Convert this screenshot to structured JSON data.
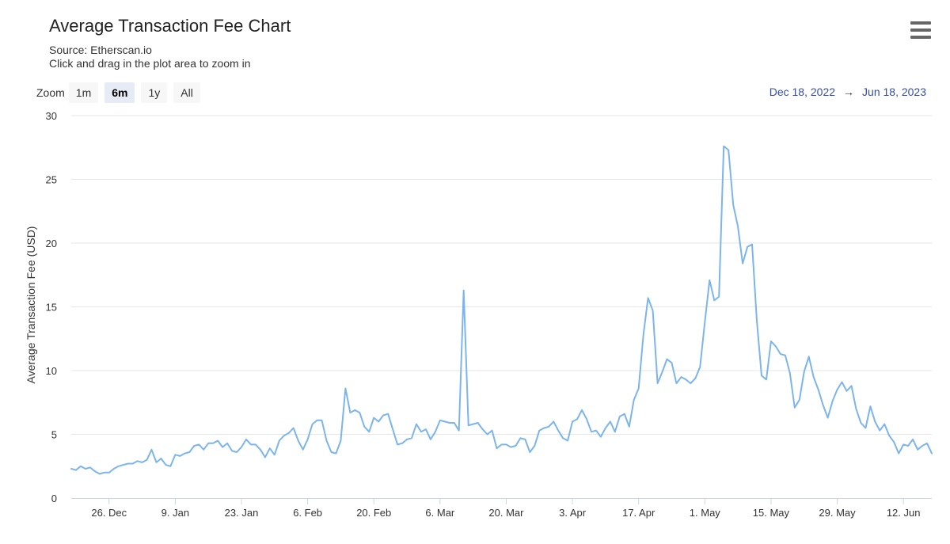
{
  "header": {
    "title": "Average Transaction Fee Chart",
    "source": "Source: Etherscan.io",
    "hint": "Click and drag in the plot area to zoom in"
  },
  "zoom": {
    "label": "Zoom",
    "buttons": [
      "1m",
      "6m",
      "1y",
      "All"
    ],
    "selected": "6m"
  },
  "range": {
    "from": "Dec 18, 2022",
    "arrow": "→",
    "to": "Jun 18, 2023"
  },
  "menu": {
    "icon": "hamburger-menu-icon"
  },
  "colors": {
    "line": "#7cb5ec",
    "grid": "#e6e6e6",
    "axis_text": "#333333",
    "range_text": "#334eaa"
  },
  "chart_data": {
    "type": "line",
    "title": "Average Transaction Fee Chart",
    "ylabel": "Average Transaction Fee (USD)",
    "xlabel": "",
    "ylim": [
      0,
      30
    ],
    "y_ticks": [
      0,
      5,
      10,
      15,
      20,
      25,
      30
    ],
    "x_range": [
      "2022-12-18",
      "2023-06-18"
    ],
    "x_ticks": [
      {
        "date": "2022-12-26",
        "label": "26. Dec"
      },
      {
        "date": "2023-01-09",
        "label": "9. Jan"
      },
      {
        "date": "2023-01-23",
        "label": "23. Jan"
      },
      {
        "date": "2023-02-06",
        "label": "6. Feb"
      },
      {
        "date": "2023-02-20",
        "label": "20. Feb"
      },
      {
        "date": "2023-03-06",
        "label": "6. Mar"
      },
      {
        "date": "2023-03-20",
        "label": "20. Mar"
      },
      {
        "date": "2023-04-03",
        "label": "3. Apr"
      },
      {
        "date": "2023-04-17",
        "label": "17. Apr"
      },
      {
        "date": "2023-05-01",
        "label": "1. May"
      },
      {
        "date": "2023-05-15",
        "label": "15. May"
      },
      {
        "date": "2023-05-29",
        "label": "29. May"
      },
      {
        "date": "2023-06-12",
        "label": "12. Jun"
      }
    ],
    "grid": true,
    "legend": "none",
    "series": [
      {
        "points": [
          [
            "2022-12-18",
            2.3
          ],
          [
            "2022-12-19",
            2.2
          ],
          [
            "2022-12-20",
            2.5
          ],
          [
            "2022-12-21",
            2.3
          ],
          [
            "2022-12-22",
            2.4
          ],
          [
            "2022-12-23",
            2.1
          ],
          [
            "2022-12-24",
            1.9
          ],
          [
            "2022-12-25",
            2.0
          ],
          [
            "2022-12-26",
            2.0
          ],
          [
            "2022-12-27",
            2.3
          ],
          [
            "2022-12-28",
            2.5
          ],
          [
            "2022-12-29",
            2.6
          ],
          [
            "2022-12-30",
            2.7
          ],
          [
            "2022-12-31",
            2.7
          ],
          [
            "2023-01-01",
            2.9
          ],
          [
            "2023-01-02",
            2.8
          ],
          [
            "2023-01-03",
            3.0
          ],
          [
            "2023-01-04",
            3.8
          ],
          [
            "2023-01-05",
            2.8
          ],
          [
            "2023-01-06",
            3.1
          ],
          [
            "2023-01-07",
            2.6
          ],
          [
            "2023-01-08",
            2.5
          ],
          [
            "2023-01-09",
            3.4
          ],
          [
            "2023-01-10",
            3.3
          ],
          [
            "2023-01-11",
            3.5
          ],
          [
            "2023-01-12",
            3.6
          ],
          [
            "2023-01-13",
            4.1
          ],
          [
            "2023-01-14",
            4.2
          ],
          [
            "2023-01-15",
            3.8
          ],
          [
            "2023-01-16",
            4.3
          ],
          [
            "2023-01-17",
            4.3
          ],
          [
            "2023-01-18",
            4.5
          ],
          [
            "2023-01-19",
            4.0
          ],
          [
            "2023-01-20",
            4.3
          ],
          [
            "2023-01-21",
            3.7
          ],
          [
            "2023-01-22",
            3.6
          ],
          [
            "2023-01-23",
            4.0
          ],
          [
            "2023-01-24",
            4.6
          ],
          [
            "2023-01-25",
            4.2
          ],
          [
            "2023-01-26",
            4.2
          ],
          [
            "2023-01-27",
            3.8
          ],
          [
            "2023-01-28",
            3.2
          ],
          [
            "2023-01-29",
            3.9
          ],
          [
            "2023-01-30",
            3.4
          ],
          [
            "2023-01-31",
            4.5
          ],
          [
            "2023-02-01",
            4.9
          ],
          [
            "2023-02-02",
            5.1
          ],
          [
            "2023-02-03",
            5.5
          ],
          [
            "2023-02-04",
            4.5
          ],
          [
            "2023-02-05",
            3.8
          ],
          [
            "2023-02-06",
            4.6
          ],
          [
            "2023-02-07",
            5.8
          ],
          [
            "2023-02-08",
            6.1
          ],
          [
            "2023-02-09",
            6.1
          ],
          [
            "2023-02-10",
            4.5
          ],
          [
            "2023-02-11",
            3.6
          ],
          [
            "2023-02-12",
            3.5
          ],
          [
            "2023-02-13",
            4.5
          ],
          [
            "2023-02-14",
            8.6
          ],
          [
            "2023-02-15",
            6.7
          ],
          [
            "2023-02-16",
            6.9
          ],
          [
            "2023-02-17",
            6.7
          ],
          [
            "2023-02-18",
            5.6
          ],
          [
            "2023-02-19",
            5.2
          ],
          [
            "2023-02-20",
            6.3
          ],
          [
            "2023-02-21",
            6.0
          ],
          [
            "2023-02-22",
            6.5
          ],
          [
            "2023-02-23",
            6.6
          ],
          [
            "2023-02-24",
            5.4
          ],
          [
            "2023-02-25",
            4.2
          ],
          [
            "2023-02-26",
            4.3
          ],
          [
            "2023-02-27",
            4.6
          ],
          [
            "2023-02-28",
            4.7
          ],
          [
            "2023-03-01",
            5.8
          ],
          [
            "2023-03-02",
            5.2
          ],
          [
            "2023-03-03",
            5.4
          ],
          [
            "2023-03-04",
            4.6
          ],
          [
            "2023-03-05",
            5.2
          ],
          [
            "2023-03-06",
            6.1
          ],
          [
            "2023-03-07",
            6.0
          ],
          [
            "2023-03-08",
            5.9
          ],
          [
            "2023-03-09",
            5.9
          ],
          [
            "2023-03-10",
            5.3
          ],
          [
            "2023-03-11",
            16.3
          ],
          [
            "2023-03-12",
            5.7
          ],
          [
            "2023-03-13",
            5.8
          ],
          [
            "2023-03-14",
            5.9
          ],
          [
            "2023-03-15",
            5.4
          ],
          [
            "2023-03-16",
            5.0
          ],
          [
            "2023-03-17",
            5.3
          ],
          [
            "2023-03-18",
            3.9
          ],
          [
            "2023-03-19",
            4.2
          ],
          [
            "2023-03-20",
            4.2
          ],
          [
            "2023-03-21",
            4.0
          ],
          [
            "2023-03-22",
            4.1
          ],
          [
            "2023-03-23",
            4.7
          ],
          [
            "2023-03-24",
            4.6
          ],
          [
            "2023-03-25",
            3.6
          ],
          [
            "2023-03-26",
            4.1
          ],
          [
            "2023-03-27",
            5.3
          ],
          [
            "2023-03-28",
            5.5
          ],
          [
            "2023-03-29",
            5.6
          ],
          [
            "2023-03-30",
            6.0
          ],
          [
            "2023-03-31",
            5.3
          ],
          [
            "2023-04-01",
            4.7
          ],
          [
            "2023-04-02",
            4.5
          ],
          [
            "2023-04-03",
            6.0
          ],
          [
            "2023-04-04",
            6.2
          ],
          [
            "2023-04-05",
            6.9
          ],
          [
            "2023-04-06",
            6.2
          ],
          [
            "2023-04-07",
            5.2
          ],
          [
            "2023-04-08",
            5.3
          ],
          [
            "2023-04-09",
            4.8
          ],
          [
            "2023-04-10",
            5.5
          ],
          [
            "2023-04-11",
            6.0
          ],
          [
            "2023-04-12",
            5.2
          ],
          [
            "2023-04-13",
            6.4
          ],
          [
            "2023-04-14",
            6.6
          ],
          [
            "2023-04-15",
            5.6
          ],
          [
            "2023-04-16",
            7.7
          ],
          [
            "2023-04-17",
            8.6
          ],
          [
            "2023-04-18",
            12.8
          ],
          [
            "2023-04-19",
            15.7
          ],
          [
            "2023-04-20",
            14.7
          ],
          [
            "2023-04-21",
            9.0
          ],
          [
            "2023-04-22",
            9.9
          ],
          [
            "2023-04-23",
            10.9
          ],
          [
            "2023-04-24",
            10.6
          ],
          [
            "2023-04-25",
            9.0
          ],
          [
            "2023-04-26",
            9.5
          ],
          [
            "2023-04-27",
            9.3
          ],
          [
            "2023-04-28",
            9.0
          ],
          [
            "2023-04-29",
            9.4
          ],
          [
            "2023-04-30",
            10.3
          ],
          [
            "2023-05-01",
            13.8
          ],
          [
            "2023-05-02",
            17.1
          ],
          [
            "2023-05-03",
            15.5
          ],
          [
            "2023-05-04",
            15.8
          ],
          [
            "2023-05-05",
            27.6
          ],
          [
            "2023-05-06",
            27.3
          ],
          [
            "2023-05-07",
            23.0
          ],
          [
            "2023-05-08",
            21.3
          ],
          [
            "2023-05-09",
            18.4
          ],
          [
            "2023-05-10",
            19.7
          ],
          [
            "2023-05-11",
            19.9
          ],
          [
            "2023-05-12",
            13.9
          ],
          [
            "2023-05-13",
            9.6
          ],
          [
            "2023-05-14",
            9.3
          ],
          [
            "2023-05-15",
            12.3
          ],
          [
            "2023-05-16",
            11.9
          ],
          [
            "2023-05-17",
            11.3
          ],
          [
            "2023-05-18",
            11.2
          ],
          [
            "2023-05-19",
            9.8
          ],
          [
            "2023-05-20",
            7.1
          ],
          [
            "2023-05-21",
            7.7
          ],
          [
            "2023-05-22",
            9.9
          ],
          [
            "2023-05-23",
            11.1
          ],
          [
            "2023-05-24",
            9.5
          ],
          [
            "2023-05-25",
            8.5
          ],
          [
            "2023-05-26",
            7.3
          ],
          [
            "2023-05-27",
            6.3
          ],
          [
            "2023-05-28",
            7.6
          ],
          [
            "2023-05-29",
            8.5
          ],
          [
            "2023-05-30",
            9.1
          ],
          [
            "2023-05-31",
            8.4
          ],
          [
            "2023-06-01",
            8.8
          ],
          [
            "2023-06-02",
            7.0
          ],
          [
            "2023-06-03",
            5.9
          ],
          [
            "2023-06-04",
            5.5
          ],
          [
            "2023-06-05",
            7.2
          ],
          [
            "2023-06-06",
            6.0
          ],
          [
            "2023-06-07",
            5.3
          ],
          [
            "2023-06-08",
            5.8
          ],
          [
            "2023-06-09",
            4.9
          ],
          [
            "2023-06-10",
            4.4
          ],
          [
            "2023-06-11",
            3.5
          ],
          [
            "2023-06-12",
            4.2
          ],
          [
            "2023-06-13",
            4.1
          ],
          [
            "2023-06-14",
            4.6
          ],
          [
            "2023-06-15",
            3.8
          ],
          [
            "2023-06-16",
            4.1
          ],
          [
            "2023-06-17",
            4.3
          ],
          [
            "2023-06-18",
            3.5
          ]
        ]
      }
    ]
  }
}
